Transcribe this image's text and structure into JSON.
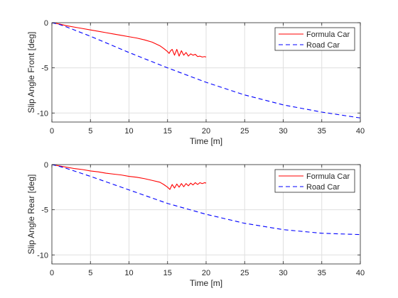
{
  "chart_data": [
    {
      "type": "line",
      "title": "",
      "xlabel": "Time [m]",
      "ylabel": "Slip Angle Front [deg]",
      "xlim": [
        0,
        40
      ],
      "ylim": [
        -11,
        0
      ],
      "xticks": [
        0,
        5,
        10,
        15,
        20,
        25,
        30,
        35,
        40
      ],
      "yticks": [
        0,
        -5,
        -10
      ],
      "grid": true,
      "legend_position": "top-right",
      "series": [
        {
          "name": "Formula Car",
          "color": "#ff0000",
          "style": "solid",
          "x": [
            0,
            1,
            2,
            3,
            4,
            5,
            6,
            7,
            8,
            9,
            10,
            11,
            12,
            13,
            14,
            14.5,
            15,
            15.2,
            15.4,
            15.6,
            15.9,
            16.2,
            16.5,
            16.8,
            17.1,
            17.4,
            17.7,
            18.0,
            18.3,
            18.6,
            18.9,
            19.2,
            19.5,
            19.8,
            20
          ],
          "y": [
            0,
            -0.15,
            -0.35,
            -0.5,
            -0.65,
            -0.8,
            -0.95,
            -1.1,
            -1.25,
            -1.4,
            -1.55,
            -1.7,
            -1.9,
            -2.15,
            -2.55,
            -2.85,
            -3.2,
            -3.4,
            -3.1,
            -2.95,
            -3.6,
            -2.95,
            -3.7,
            -3.1,
            -3.6,
            -3.3,
            -3.7,
            -3.45,
            -3.6,
            -3.5,
            -3.75,
            -3.7,
            -3.8,
            -3.75,
            -3.8
          ]
        },
        {
          "name": "Road Car",
          "color": "#0000ff",
          "style": "dashed",
          "x": [
            0,
            1,
            2,
            5,
            10,
            15,
            20,
            25,
            30,
            35,
            40
          ],
          "y": [
            0,
            -0.2,
            -0.5,
            -1.5,
            -3.3,
            -5.0,
            -6.6,
            -8.0,
            -9.1,
            -9.9,
            -10.55
          ]
        }
      ]
    },
    {
      "type": "line",
      "title": "",
      "xlabel": "Time [m]",
      "ylabel": "Slip Angle Rear [deg]",
      "xlim": [
        0,
        40
      ],
      "ylim": [
        -11,
        0
      ],
      "xticks": [
        0,
        5,
        10,
        15,
        20,
        25,
        30,
        35,
        40
      ],
      "yticks": [
        0,
        -5,
        -10
      ],
      "grid": true,
      "legend_position": "top-right",
      "series": [
        {
          "name": "Formula Car",
          "color": "#ff0000",
          "style": "solid",
          "x": [
            0,
            1,
            2,
            3,
            4,
            5,
            6,
            7,
            8,
            9,
            10,
            11,
            12,
            13,
            14,
            14.5,
            15,
            15.3,
            15.6,
            15.9,
            16.2,
            16.5,
            16.8,
            17.1,
            17.4,
            17.7,
            18.0,
            18.3,
            18.6,
            18.9,
            19.2,
            19.5,
            19.8,
            20
          ],
          "y": [
            0,
            -0.15,
            -0.3,
            -0.45,
            -0.55,
            -0.7,
            -0.8,
            -0.95,
            -1.05,
            -1.15,
            -1.3,
            -1.4,
            -1.55,
            -1.75,
            -1.95,
            -2.2,
            -2.5,
            -2.75,
            -2.2,
            -2.6,
            -2.15,
            -2.5,
            -2.1,
            -2.45,
            -2.1,
            -2.35,
            -2.05,
            -2.25,
            -2.0,
            -2.2,
            -2.0,
            -2.1,
            -2.0,
            -2.05
          ]
        },
        {
          "name": "Road Car",
          "color": "#0000ff",
          "style": "dashed",
          "x": [
            0,
            1,
            2,
            5,
            10,
            15,
            20,
            25,
            30,
            35,
            40
          ],
          "y": [
            0,
            -0.2,
            -0.45,
            -1.3,
            -2.8,
            -4.3,
            -5.5,
            -6.5,
            -7.2,
            -7.6,
            -7.75
          ]
        }
      ]
    }
  ]
}
